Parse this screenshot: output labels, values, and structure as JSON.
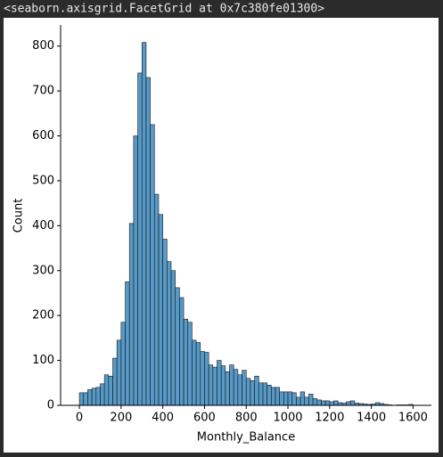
{
  "output_text": "<seaborn.axisgrid.FacetGrid at 0x7c380fe01300>",
  "chart_data": {
    "type": "histogram",
    "x_label": "Monthly_Balance",
    "y_label": "Count",
    "bins": [
      0,
      20,
      40,
      60,
      80,
      100,
      120,
      140,
      160,
      180,
      200,
      220,
      240,
      260,
      280,
      300,
      320,
      340,
      360,
      380,
      400,
      420,
      440,
      460,
      480,
      500,
      520,
      540,
      560,
      580,
      600,
      620,
      640,
      660,
      680,
      700,
      720,
      740,
      760,
      780,
      800,
      820,
      840,
      860,
      880,
      900,
      920,
      940,
      960,
      980,
      1000,
      1020,
      1040,
      1060,
      1080,
      1100,
      1120,
      1140,
      1160,
      1180,
      1200,
      1220,
      1240,
      1260,
      1280,
      1300,
      1320,
      1340,
      1360,
      1380,
      1400,
      1420,
      1440,
      1460,
      1480,
      1500,
      1520,
      1540,
      1560,
      1580,
      1600
    ],
    "values": [
      28,
      28,
      35,
      38,
      40,
      48,
      68,
      65,
      105,
      145,
      185,
      275,
      405,
      600,
      740,
      808,
      730,
      625,
      470,
      425,
      370,
      320,
      300,
      262,
      240,
      192,
      185,
      145,
      140,
      120,
      118,
      90,
      85,
      100,
      88,
      75,
      90,
      80,
      68,
      78,
      60,
      55,
      65,
      50,
      50,
      45,
      40,
      40,
      30,
      30,
      30,
      28,
      18,
      30,
      18,
      25,
      15,
      12,
      10,
      10,
      8,
      10,
      6,
      5,
      8,
      10,
      5,
      4,
      3,
      2,
      3,
      6,
      4,
      2,
      1,
      0,
      1,
      1,
      1,
      2
    ],
    "color": "#1f77b4",
    "xlim": [
      -90,
      1688
    ],
    "ylim": [
      0,
      847
    ],
    "xticks": [
      0,
      200,
      400,
      600,
      800,
      1000,
      1200,
      1400,
      1600
    ],
    "yticks": [
      0,
      100,
      200,
      300,
      400,
      500,
      600,
      700,
      800
    ]
  }
}
